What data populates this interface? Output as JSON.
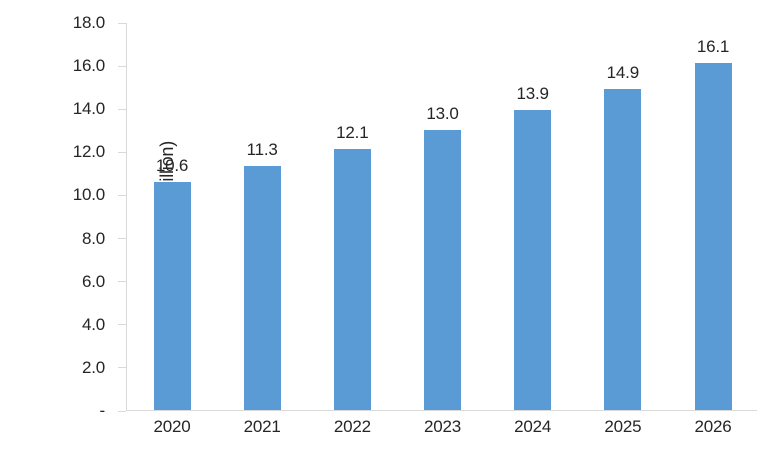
{
  "chart_data": {
    "type": "bar",
    "title": "",
    "xlabel": "",
    "ylabel": "Market Size (USD Billion)",
    "categories": [
      "2020",
      "2021",
      "2022",
      "2023",
      "2024",
      "2025",
      "2026"
    ],
    "values": [
      10.6,
      11.3,
      12.1,
      13.0,
      13.9,
      14.9,
      16.1
    ],
    "data_labels": [
      "10.6",
      "11.3",
      "12.1",
      "13.0",
      "13.9",
      "14.9",
      "16.1"
    ],
    "ylim": [
      0,
      18
    ],
    "ytick_values": [
      0,
      2,
      4,
      6,
      8,
      10,
      12,
      14,
      16,
      18
    ],
    "ytick_labels": [
      "-",
      "2.0",
      "4.0",
      "6.0",
      "8.0",
      "10.0",
      "12.0",
      "14.0",
      "16.0",
      "18.0"
    ],
    "grid": false,
    "legend": false,
    "colors": {
      "bar": "#5B9BD5",
      "axis": "#D9D9D9",
      "text": "#262626"
    }
  }
}
